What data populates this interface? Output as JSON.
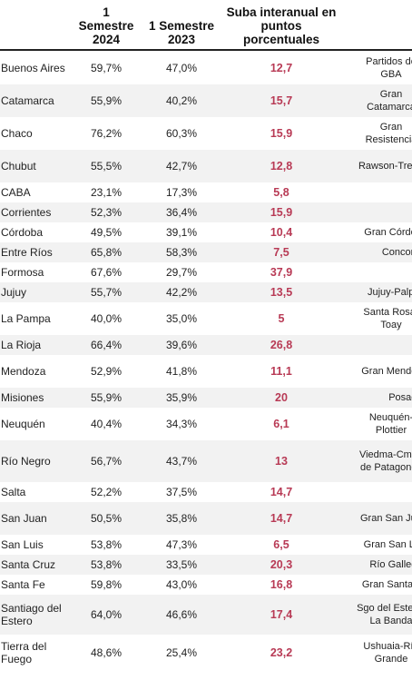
{
  "headers": [
    "",
    "1 Semestre 2024",
    "1 Semestre 2023",
    "Suba interanual en puntos porcentuales",
    ""
  ],
  "rows": [
    {
      "province": "Buenos Aires",
      "s2024": "59,7%",
      "s2023": "47,0%",
      "change": "12,7",
      "area": "Partidos de GBA"
    },
    {
      "province": "Catamarca",
      "s2024": "55,9%",
      "s2023": "40,2%",
      "change": "15,7",
      "area": "Gran Catamarca"
    },
    {
      "province": "Chaco",
      "s2024": "76,2%",
      "s2023": "60,3%",
      "change": "15,9",
      "area": "Gran Resistencia"
    },
    {
      "province": "Chubut",
      "s2024": "55,5%",
      "s2023": "42,7%",
      "change": "12,8",
      "area": "Rawson-Trelew"
    },
    {
      "province": "CABA",
      "s2024": "23,1%",
      "s2023": "17,3%",
      "change": "5,8",
      "area": ""
    },
    {
      "province": "Corrientes",
      "s2024": "52,3%",
      "s2023": "36,4%",
      "change": "15,9",
      "area": ""
    },
    {
      "province": "Córdoba",
      "s2024": "49,5%",
      "s2023": "39,1%",
      "change": "10,4",
      "area": "Gran Córdoba"
    },
    {
      "province": "Entre Ríos",
      "s2024": "65,8%",
      "s2023": "58,3%",
      "change": "7,5",
      "area": "Concordia"
    },
    {
      "province": "Formosa",
      "s2024": "67,6%",
      "s2023": "29,7%",
      "change": "37,9",
      "area": ""
    },
    {
      "province": "Jujuy",
      "s2024": "55,7%",
      "s2023": "42,2%",
      "change": "13,5",
      "area": "Jujuy-Palpalá"
    },
    {
      "province": "La Pampa",
      "s2024": "40,0%",
      "s2023": "35,0%",
      "change": "5",
      "area": "Santa Rosa-Toay"
    },
    {
      "province": "La Rioja",
      "s2024": "66,4%",
      "s2023": "39,6%",
      "change": "26,8",
      "area": ""
    },
    {
      "province": "Mendoza",
      "s2024": "52,9%",
      "s2023": "41,8%",
      "change": "11,1",
      "area": "Gran Mendoza"
    },
    {
      "province": "Misiones",
      "s2024": "55,9%",
      "s2023": "35,9%",
      "change": "20",
      "area": "Posadas"
    },
    {
      "province": "Neuquén",
      "s2024": "40,4%",
      "s2023": "34,3%",
      "change": "6,1",
      "area": "Neuquén-Plottier"
    },
    {
      "province": "Río Negro",
      "s2024": "56,7%",
      "s2023": "43,7%",
      "change": "13",
      "area": "Viedma-Cmen de Patagones"
    },
    {
      "province": "Salta",
      "s2024": "52,2%",
      "s2023": "37,5%",
      "change": "14,7",
      "area": ""
    },
    {
      "province": "San Juan",
      "s2024": "50,5%",
      "s2023": "35,8%",
      "change": "14,7",
      "area": "Gran San Juan"
    },
    {
      "province": "San Luis",
      "s2024": "53,8%",
      "s2023": "47,3%",
      "change": "6,5",
      "area": "Gran San Luis"
    },
    {
      "province": "Santa Cruz",
      "s2024": "53,8%",
      "s2023": "33,5%",
      "change": "20,3",
      "area": "Río Gallegos"
    },
    {
      "province": "Santa Fe",
      "s2024": "59,8%",
      "s2023": "43,0%",
      "change": "16,8",
      "area": "Gran Santa Fe"
    },
    {
      "province": "Santiago del Estero",
      "s2024": "64,0%",
      "s2023": "46,6%",
      "change": "17,4",
      "area": "Sgo del Estero-La Banda"
    },
    {
      "province": "Tierra del Fuego",
      "s2024": "48,6%",
      "s2023": "25,4%",
      "change": "23,2",
      "area": "Ushuaia-Río Grande"
    }
  ],
  "colors": {
    "accent": "#b83a55",
    "stripe": "#f2f2f2"
  }
}
